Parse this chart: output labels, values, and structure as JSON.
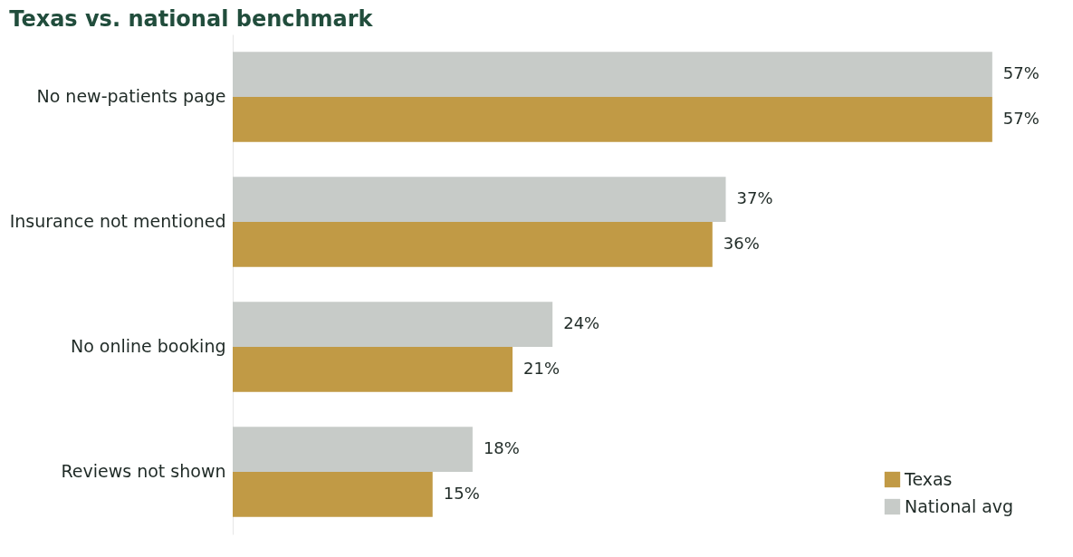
{
  "chart_data": {
    "type": "bar",
    "orientation": "horizontal",
    "title": "Texas vs. national benchmark",
    "categories": [
      "No new-patients page",
      "Insurance not mentioned",
      "No online booking",
      "Reviews not shown"
    ],
    "series": [
      {
        "name": "Texas",
        "color": "#c19a45",
        "values": [
          57,
          36,
          21,
          15
        ],
        "value_labels": [
          "57%",
          "36%",
          "21%",
          "15%"
        ]
      },
      {
        "name": "National avg",
        "color": "#c7cbc8",
        "values": [
          57,
          37,
          24,
          18
        ],
        "value_labels": [
          "57%",
          "37%",
          "24%",
          "18%"
        ]
      }
    ],
    "legend": "bottom right",
    "grid": false
  }
}
